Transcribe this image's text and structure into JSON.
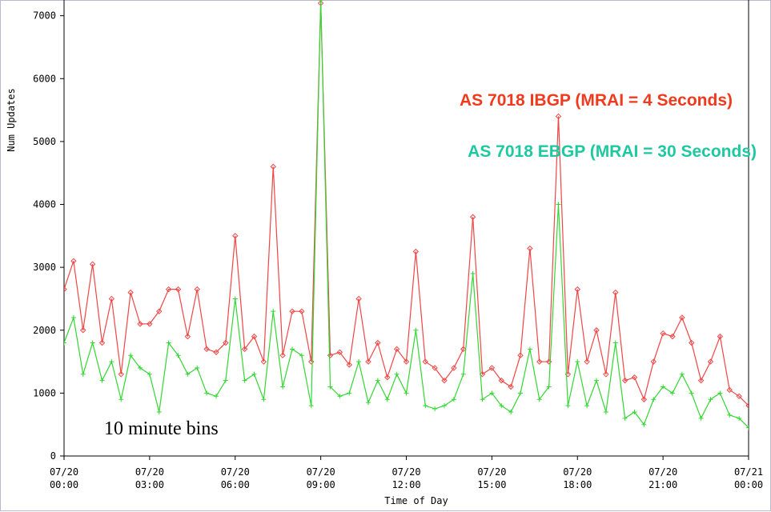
{
  "chart_data": {
    "type": "line",
    "ylabel": "Num Updates",
    "xlabel": "Time of Day",
    "annotations": [
      "AS 7018 IBGP (MRAI = 4 Seconds)",
      "AS 7018 EBGP (MRAI = 30 Seconds)",
      "10 minute bins"
    ],
    "xlim": [
      0,
      1440
    ],
    "ylim": [
      0,
      7250
    ],
    "xticks": [
      {
        "value": 0,
        "label": "07/20 00:00"
      },
      {
        "value": 180,
        "label": "07/20 03:00"
      },
      {
        "value": 360,
        "label": "07/20 06:00"
      },
      {
        "value": 540,
        "label": "07/20 09:00"
      },
      {
        "value": 720,
        "label": "07/20 12:00"
      },
      {
        "value": 900,
        "label": "07/20 15:00"
      },
      {
        "value": 1080,
        "label": "07/20 18:00"
      },
      {
        "value": 1260,
        "label": "07/20 21:00"
      },
      {
        "value": 1440,
        "label": "07/21 00:00"
      }
    ],
    "yticks": [
      0,
      1000,
      2000,
      3000,
      4000,
      5000,
      6000,
      7000
    ],
    "x": [
      0,
      20,
      40,
      60,
      80,
      100,
      120,
      140,
      160,
      180,
      200,
      220,
      240,
      260,
      280,
      300,
      320,
      340,
      360,
      380,
      400,
      420,
      440,
      460,
      480,
      500,
      520,
      540,
      560,
      580,
      600,
      620,
      640,
      660,
      680,
      700,
      720,
      740,
      760,
      780,
      800,
      820,
      840,
      860,
      880,
      900,
      920,
      940,
      960,
      980,
      1000,
      1020,
      1040,
      1060,
      1080,
      1100,
      1120,
      1140,
      1160,
      1180,
      1200,
      1220,
      1240,
      1260,
      1280,
      1300,
      1320,
      1340,
      1360,
      1380,
      1400,
      1420,
      1440
    ],
    "series": [
      {
        "color": "#f04545",
        "marker": "diamond",
        "values": [
          2650,
          3100,
          2000,
          3050,
          1800,
          2500,
          1300,
          2600,
          2100,
          2100,
          2300,
          2650,
          2650,
          1900,
          2650,
          1700,
          1650,
          1800,
          3500,
          1700,
          1900,
          1500,
          4600,
          1600,
          2300,
          2300,
          1500,
          7200,
          1600,
          1650,
          1450,
          2500,
          1500,
          1800,
          1250,
          1700,
          1500,
          3250,
          1500,
          1400,
          1200,
          1400,
          1700,
          3800,
          1300,
          1400,
          1200,
          1100,
          1600,
          3300,
          1500,
          1500,
          5400,
          1300,
          2650,
          1500,
          2000,
          1300,
          2600,
          1200,
          1250,
          900,
          1500,
          1950,
          1900,
          2200,
          1800,
          1200,
          1500,
          1900,
          1050,
          950,
          800
        ]
      },
      {
        "color": "#33d633",
        "marker": "plus",
        "values": [
          1800,
          2200,
          1300,
          1800,
          1200,
          1500,
          900,
          1600,
          1400,
          1300,
          700,
          1800,
          1600,
          1300,
          1400,
          1000,
          950,
          1200,
          2500,
          1200,
          1300,
          900,
          2300,
          1100,
          1700,
          1600,
          800,
          7250,
          1100,
          950,
          1000,
          1500,
          850,
          1200,
          900,
          1300,
          1000,
          2000,
          800,
          750,
          800,
          900,
          1300,
          2900,
          900,
          1000,
          800,
          700,
          1000,
          1700,
          900,
          1100,
          4000,
          800,
          1500,
          800,
          1200,
          700,
          1800,
          600,
          700,
          500,
          900,
          1100,
          1000,
          1300,
          1000,
          600,
          900,
          1000,
          650,
          600,
          450
        ]
      }
    ]
  }
}
